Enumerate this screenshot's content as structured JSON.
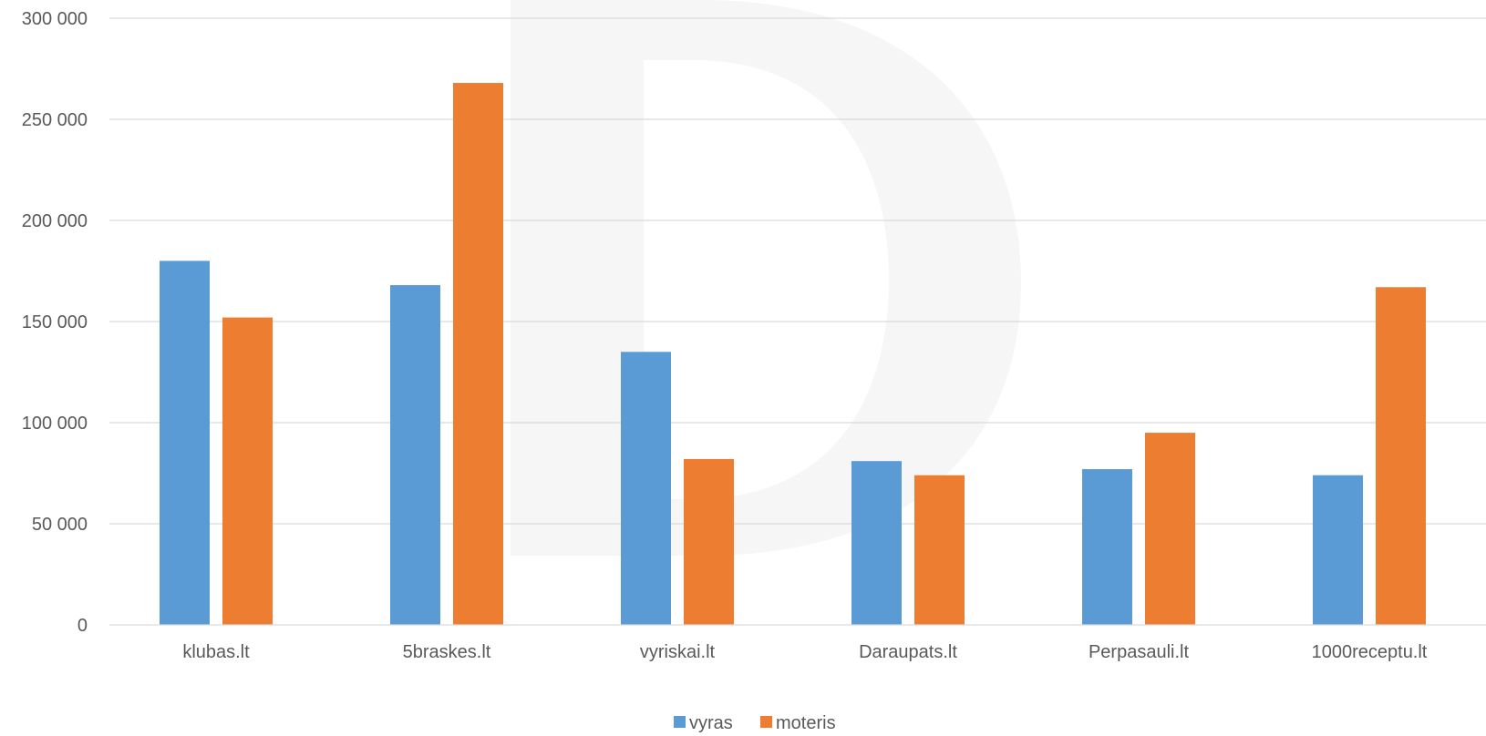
{
  "chart_data": {
    "type": "bar",
    "title": "",
    "xlabel": "",
    "ylabel": "",
    "ylim": [
      0,
      300000
    ],
    "y_ticks": [
      0,
      50000,
      100000,
      150000,
      200000,
      250000,
      300000
    ],
    "y_tick_labels": [
      "0",
      "50 000",
      "100 000",
      "150 000",
      "200 000",
      "250 000",
      "300 000"
    ],
    "grid": true,
    "legend_position": "bottom",
    "categories": [
      "klubas.lt",
      "5braskes.lt",
      "vyriskai.lt",
      "Daraupats.lt",
      "Perpasauli.lt",
      "1000receptu.lt"
    ],
    "series": [
      {
        "name": "vyras",
        "color": "#5B9BD5",
        "values": [
          180000,
          168000,
          135000,
          81000,
          77000,
          74000
        ]
      },
      {
        "name": "moteris",
        "color": "#ED7D31",
        "values": [
          152000,
          268000,
          82000,
          74000,
          95000,
          167000
        ]
      }
    ],
    "colors": {
      "grid": "#D9D9D9",
      "axis": "#D9D9D9",
      "text": "#595959",
      "watermark": "#F6F6F6"
    },
    "watermark_icon": "d-logo-watermark"
  }
}
